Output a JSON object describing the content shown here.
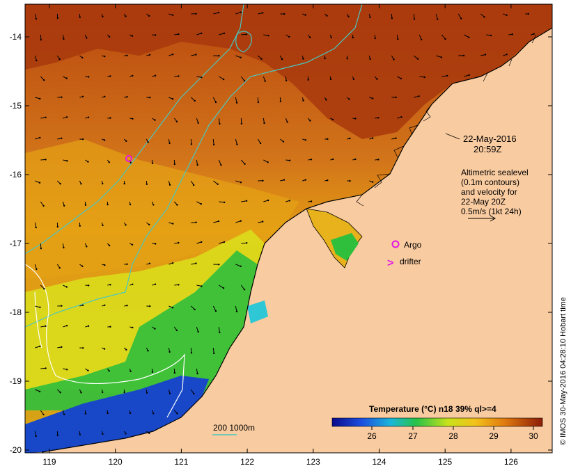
{
  "map": {
    "x_ticks": [
      "119",
      "120",
      "121",
      "122",
      "123",
      "124",
      "125",
      "126"
    ],
    "y_ticks": [
      "-14",
      "-15",
      "-16",
      "-17",
      "-18",
      "-19",
      "-20"
    ],
    "date": "22-May-2016",
    "time": "20:59Z",
    "altimetry_lines": [
      "Altimetric sealevel",
      "(0.1m contours)",
      "and velocity for",
      "22-May 20Z",
      "0.5m/s (1kt 24h)"
    ],
    "argo_label": "Argo",
    "drifter_label": "drifter",
    "depth_label": "200  1000m",
    "colorbar_title": "Temperature (°C) n18 39% ql>=4",
    "colorbar_ticks": [
      "26",
      "27",
      "28",
      "29",
      "30"
    ],
    "credit": "© IMOS 30-May-2016 04:28:10 Hobart time",
    "colors": {
      "land": "#f9cba0",
      "warm": "#b0400e",
      "mid": "#e39a13",
      "cool_yellow": "#d8e018",
      "green": "#28c23e",
      "blue": "#1246c8",
      "contour_cyan": "#49c7c0",
      "argo_magenta": "#e316e3"
    }
  }
}
